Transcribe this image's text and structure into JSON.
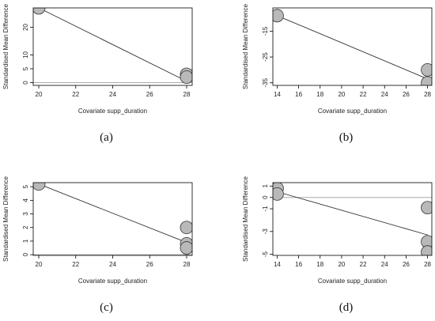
{
  "chart_data": [
    {
      "type": "scatter",
      "panel_label": "(a)",
      "xlabel": "Covariate supp_duration",
      "ylabel": "Standardised Mean Difference",
      "xlim": [
        19.7,
        28.3
      ],
      "ylim": [
        -1,
        27
      ],
      "xticks": [
        20,
        22,
        24,
        26,
        28
      ],
      "yticks": [
        0,
        5,
        10,
        20
      ],
      "points": [
        {
          "x": 20,
          "y": 27
        },
        {
          "x": 28,
          "y": 3
        },
        {
          "x": 28,
          "y": 2
        }
      ],
      "regression_line": {
        "x": [
          20,
          28
        ],
        "y": [
          27,
          0.5
        ]
      },
      "reference_line_y": 0
    },
    {
      "type": "scatter",
      "panel_label": "(b)",
      "xlabel": "Covariate supp_duration",
      "ylabel": "Standardised Mean Difference",
      "xlim": [
        13.6,
        28.4
      ],
      "ylim": [
        -36,
        -6
      ],
      "xticks": [
        14,
        16,
        18,
        20,
        22,
        24,
        26,
        28
      ],
      "yticks": [
        -15,
        -25,
        -35
      ],
      "points": [
        {
          "x": 14,
          "y": -9
        },
        {
          "x": 28,
          "y": -30
        },
        {
          "x": 28,
          "y": -35
        }
      ],
      "regression_line": {
        "x": [
          14,
          28
        ],
        "y": [
          -9,
          -33.5
        ]
      },
      "reference_line_y": null
    },
    {
      "type": "scatter",
      "panel_label": "(c)",
      "xlabel": "Covariate supp_duration",
      "ylabel": "Standardised Mean Difference",
      "xlim": [
        19.7,
        28.3
      ],
      "ylim": [
        -0.05,
        5.3
      ],
      "xticks": [
        20,
        22,
        24,
        26,
        28
      ],
      "yticks": [
        0,
        1,
        2,
        3,
        4,
        5
      ],
      "points": [
        {
          "x": 20,
          "y": 5.2
        },
        {
          "x": 28,
          "y": 2.0
        },
        {
          "x": 28,
          "y": 0.8
        },
        {
          "x": 28,
          "y": 0.5
        }
      ],
      "regression_line": {
        "x": [
          20,
          28
        ],
        "y": [
          5.2,
          0.9
        ]
      },
      "reference_line_y": 0
    },
    {
      "type": "scatter",
      "panel_label": "(d)",
      "xlabel": "Covariate supp_duration",
      "ylabel": "Standardised Mean Difference",
      "xlim": [
        13.6,
        28.4
      ],
      "ylim": [
        -5.1,
        1.3
      ],
      "xticks": [
        14,
        16,
        18,
        20,
        22,
        24,
        26,
        28
      ],
      "yticks": [
        1,
        0,
        -1,
        -3,
        -5
      ],
      "points": [
        {
          "x": 14,
          "y": 0.8
        },
        {
          "x": 14,
          "y": 0.3
        },
        {
          "x": 28,
          "y": -0.9
        },
        {
          "x": 28,
          "y": -3.9
        },
        {
          "x": 28,
          "y": -4.8
        }
      ],
      "regression_line": {
        "x": [
          14,
          28
        ],
        "y": [
          0.5,
          -3.3
        ]
      },
      "reference_line_y": 0
    }
  ],
  "colors": {
    "marker_fill": "#b9b9b9",
    "marker_stroke": "#333333",
    "regression_line": "#333333",
    "reference_line": "#aaaaaa",
    "frame": "#000000"
  }
}
